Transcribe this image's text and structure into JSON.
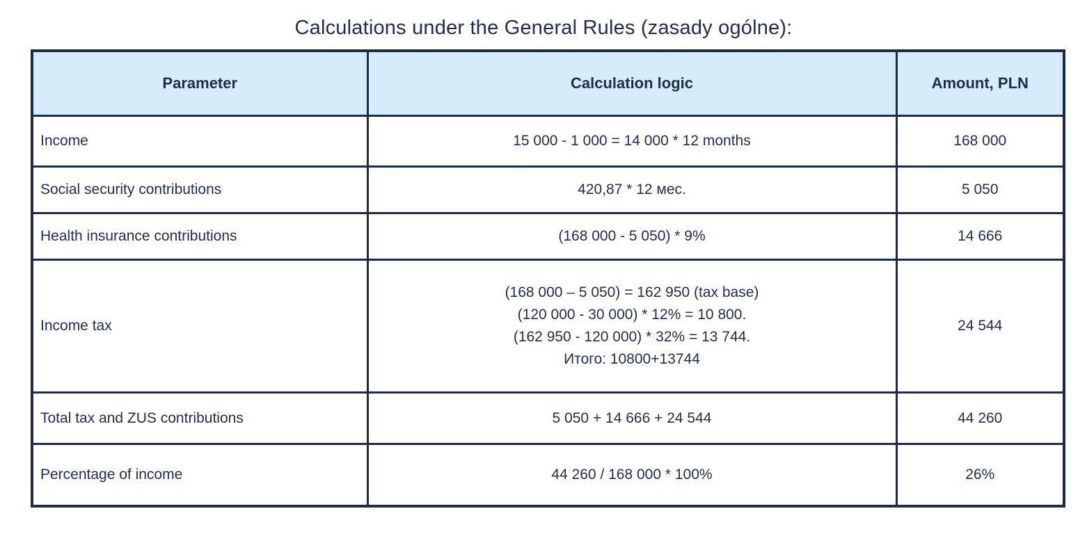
{
  "title": "Calculations under the General Rules (zasady ogólne):",
  "colors": {
    "border": "#1c2b4a",
    "header_background": "#d7ecfb",
    "text": "#1e2c4e",
    "page_background": "#ffffff"
  },
  "table": {
    "headers": [
      "Parameter",
      "Calculation logic",
      "Amount, PLN"
    ],
    "rows": [
      {
        "parameter": "Income",
        "logic": [
          "15 000 - 1 000 = 14 000 * 12 months"
        ],
        "amount": "168 000"
      },
      {
        "parameter": "Social security contributions",
        "logic": [
          "420,87 * 12 мес."
        ],
        "amount": "5 050"
      },
      {
        "parameter": "Health insurance contributions",
        "logic": [
          "(168 000 - 5 050) * 9%"
        ],
        "amount": "14 666"
      },
      {
        "parameter": "Income tax",
        "logic": [
          "(168 000 – 5 050) = 162 950 (tax base)",
          "(120 000 - 30 000) * 12% = 10 800.",
          "(162 950 - 120 000) * 32% = 13 744.",
          "Итого: 10800+13744"
        ],
        "amount": "24 544"
      },
      {
        "parameter": "Total tax and ZUS contributions",
        "logic": [
          "5 050 + 14 666 + 24 544"
        ],
        "amount": "44 260"
      },
      {
        "parameter": "Percentage of income",
        "logic": [
          "44 260 / 168 000 * 100%"
        ],
        "amount": "26%"
      }
    ]
  }
}
